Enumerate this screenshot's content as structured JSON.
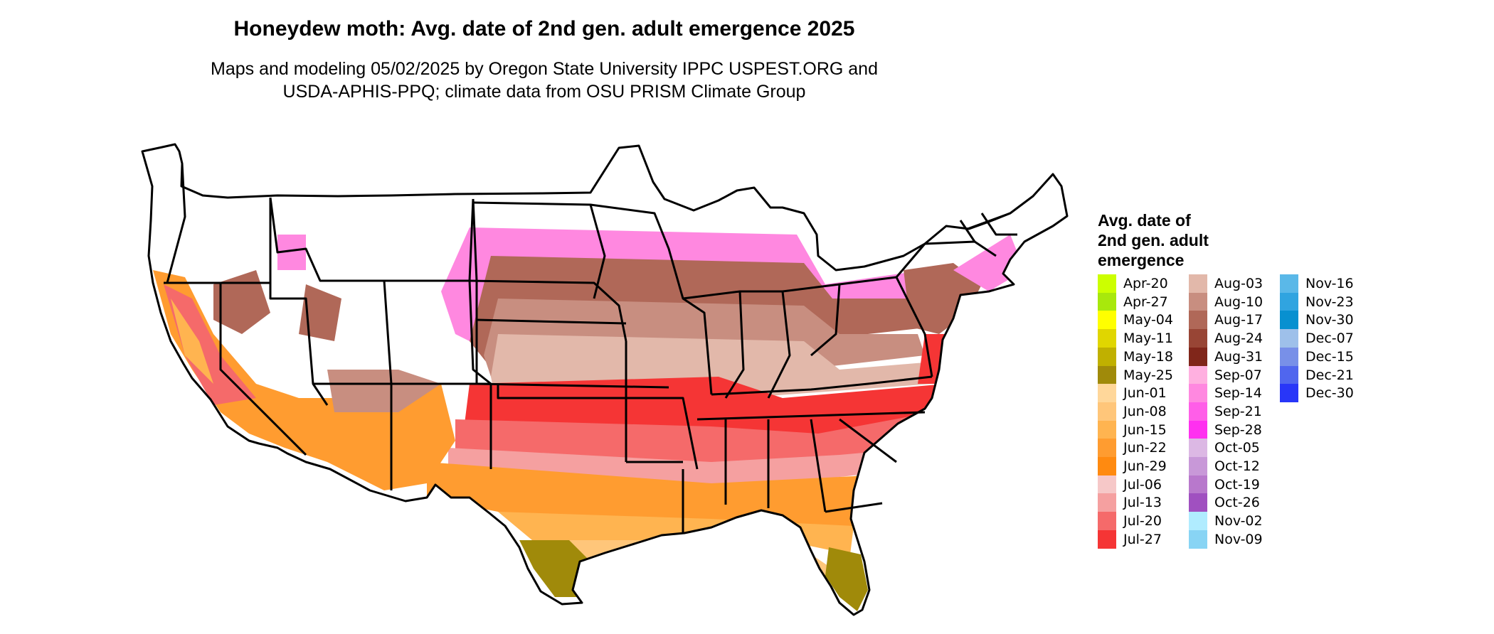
{
  "title": "Honeydew moth: Avg. date of 2nd gen. adult emergence 2025",
  "subtitle_lines": [
    "Maps and modeling 05/02/2025 by Oregon State University IPPC USPEST.ORG and",
    "USDA-APHIS-PPQ; climate data from OSU PRISM Climate Group"
  ],
  "legend": {
    "title_lines": [
      "Avg. date of",
      "2nd gen. adult",
      "emergence"
    ],
    "items": [
      {
        "label": "Apr-20",
        "color": "#ccff00"
      },
      {
        "label": "Apr-27",
        "color": "#a8e80c"
      },
      {
        "label": "May-04",
        "color": "#ffff00"
      },
      {
        "label": "May-11",
        "color": "#e0d600"
      },
      {
        "label": "May-18",
        "color": "#c0b000"
      },
      {
        "label": "May-25",
        "color": "#a08a0a"
      },
      {
        "label": "Jun-01",
        "color": "#ffd79a"
      },
      {
        "label": "Jun-08",
        "color": "#ffc67a"
      },
      {
        "label": "Jun-15",
        "color": "#ffb450"
      },
      {
        "label": "Jun-22",
        "color": "#ff9c30"
      },
      {
        "label": "Jun-29",
        "color": "#ff8a10"
      },
      {
        "label": "Jul-06",
        "color": "#f6c8c8"
      },
      {
        "label": "Jul-13",
        "color": "#f5a0a0"
      },
      {
        "label": "Jul-20",
        "color": "#f56a6a"
      },
      {
        "label": "Jul-27",
        "color": "#f53535"
      },
      {
        "label": "Aug-03",
        "color": "#e2b8aa"
      },
      {
        "label": "Aug-10",
        "color": "#c88e80"
      },
      {
        "label": "Aug-17",
        "color": "#b06858"
      },
      {
        "label": "Aug-24",
        "color": "#984535"
      },
      {
        "label": "Aug-31",
        "color": "#80261a"
      },
      {
        "label": "Sep-07",
        "color": "#ffb0e0"
      },
      {
        "label": "Sep-14",
        "color": "#ff88e0"
      },
      {
        "label": "Sep-21",
        "color": "#ff5ee8"
      },
      {
        "label": "Sep-28",
        "color": "#ff30f0"
      },
      {
        "label": "Oct-05",
        "color": "#dcb8e4"
      },
      {
        "label": "Oct-12",
        "color": "#c898d8"
      },
      {
        "label": "Oct-19",
        "color": "#b878cc"
      },
      {
        "label": "Oct-26",
        "color": "#a050c0"
      },
      {
        "label": "Nov-02",
        "color": "#b0ecff"
      },
      {
        "label": "Nov-09",
        "color": "#88d4f4"
      },
      {
        "label": "Nov-16",
        "color": "#5ab8e8"
      },
      {
        "label": "Nov-23",
        "color": "#30a4e0"
      },
      {
        "label": "Nov-30",
        "color": "#0890d0"
      },
      {
        "label": "Dec-07",
        "color": "#9ec0ea"
      },
      {
        "label": "Dec-15",
        "color": "#7890e8"
      },
      {
        "label": "Dec-21",
        "color": "#5066ee"
      },
      {
        "label": "Dec-30",
        "color": "#2836f8"
      }
    ]
  }
}
